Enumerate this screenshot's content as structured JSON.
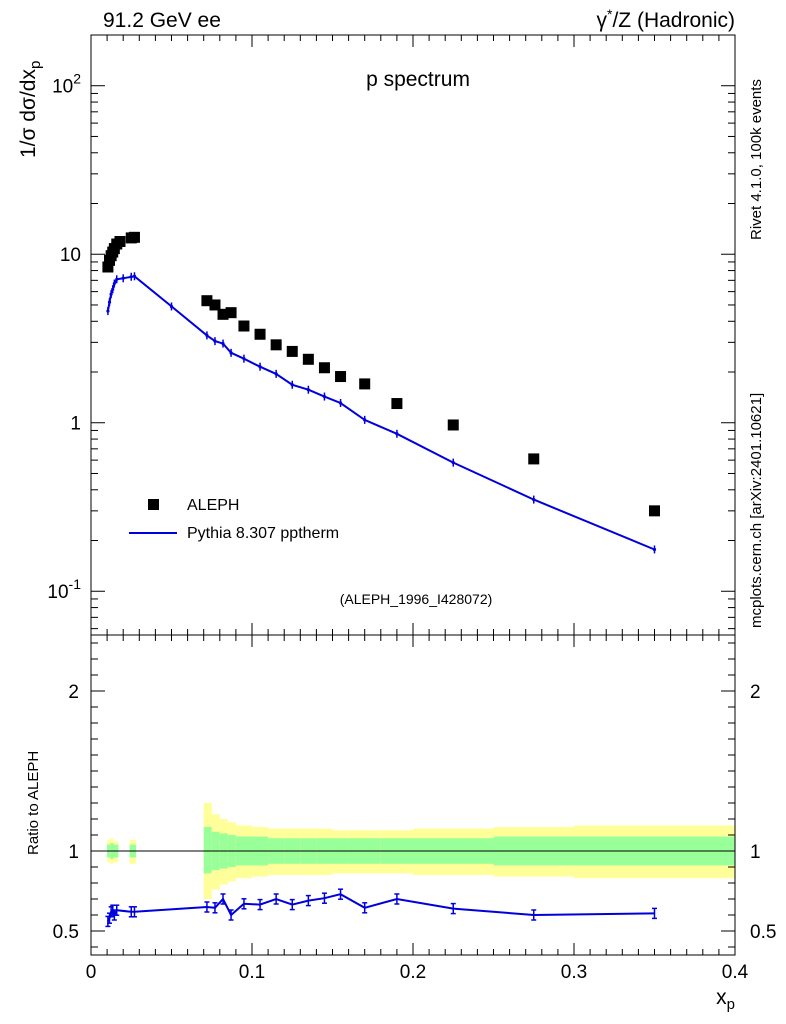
{
  "header": {
    "energy": "91.2 GeV ee",
    "process_prefix": "γ",
    "process_sup": "*",
    "process_suffix": "/Z (Hadronic)"
  },
  "side": {
    "rivet": "Rivet 4.1.0,  100k events",
    "mcplots": "mcplots.cern.ch [arXiv:2401.10621]"
  },
  "colors": {
    "mc": "#0000dd",
    "band_inner": "#99ff99",
    "band_outer": "#ffff99",
    "data": "#000000"
  },
  "chart_data": [
    {
      "type": "scatter",
      "title": "p spectrum",
      "analysis_id": "(ALEPH_1996_I428072)",
      "ylabel": "1/σ  dσ/dx_p",
      "yscale": "log",
      "xlim": [
        0,
        0.4
      ],
      "ylim": [
        0.055,
        200
      ],
      "ytick_labels": [
        "10^-1",
        "1",
        "10",
        "10^2"
      ],
      "legend": {
        "position": "bottom-left",
        "entries": [
          "ALEPH",
          "Pythia 8.307 pptherm"
        ]
      },
      "series": [
        {
          "name": "ALEPH",
          "style": "markers",
          "x": [
            0.0105,
            0.0115,
            0.0125,
            0.0135,
            0.0145,
            0.016,
            0.018,
            0.025,
            0.027,
            0.072,
            0.077,
            0.082,
            0.087,
            0.095,
            0.105,
            0.115,
            0.125,
            0.135,
            0.145,
            0.155,
            0.17,
            0.19,
            0.225,
            0.275,
            0.35
          ],
          "y": [
            8.4,
            9.2,
            9.8,
            10.3,
            10.8,
            11.5,
            11.9,
            12.5,
            12.6,
            5.3,
            5.0,
            4.4,
            4.5,
            3.75,
            3.35,
            2.9,
            2.65,
            2.38,
            2.12,
            1.88,
            1.7,
            1.3,
            0.97,
            0.61,
            0.3
          ]
        },
        {
          "name": "Pythia 8.307 pptherm",
          "style": "line",
          "x": [
            0.0105,
            0.0115,
            0.0125,
            0.0135,
            0.0145,
            0.016,
            0.02,
            0.025,
            0.027,
            0.05,
            0.072,
            0.077,
            0.082,
            0.087,
            0.095,
            0.105,
            0.115,
            0.125,
            0.135,
            0.145,
            0.155,
            0.17,
            0.19,
            0.225,
            0.275,
            0.35
          ],
          "y": [
            4.6,
            5.2,
            5.8,
            6.2,
            6.7,
            7.1,
            7.2,
            7.35,
            7.4,
            4.9,
            3.3,
            3.05,
            2.95,
            2.6,
            2.4,
            2.15,
            1.95,
            1.68,
            1.57,
            1.43,
            1.31,
            1.04,
            0.86,
            0.58,
            0.35,
            0.177
          ]
        }
      ]
    },
    {
      "type": "line",
      "ylabel": "Ratio to ALEPH",
      "xlabel": "x_p",
      "xlim": [
        0,
        0.4
      ],
      "ylim": [
        0.35,
        2.35
      ],
      "xtick_labels": [
        "0",
        "0.1",
        "0.2",
        "0.3",
        "0.4"
      ],
      "ytick_labels": [
        "0.5",
        "1",
        "2"
      ],
      "ratio_x": [
        0.0105,
        0.0115,
        0.0125,
        0.0135,
        0.0145,
        0.016,
        0.025,
        0.027,
        0.072,
        0.077,
        0.082,
        0.087,
        0.095,
        0.105,
        0.115,
        0.125,
        0.135,
        0.145,
        0.155,
        0.17,
        0.19,
        0.225,
        0.275,
        0.35
      ],
      "ratio_y": [
        0.56,
        0.58,
        0.62,
        0.63,
        0.6,
        0.63,
        0.62,
        0.62,
        0.65,
        0.645,
        0.7,
        0.6,
        0.67,
        0.665,
        0.7,
        0.665,
        0.69,
        0.705,
        0.73,
        0.645,
        0.7,
        0.64,
        0.6,
        0.61
      ],
      "bands": [
        {
          "x0": 0.01,
          "x1": 0.012,
          "inner": [
            0.96,
            1.04
          ],
          "outer": [
            0.93,
            1.07
          ]
        },
        {
          "x0": 0.012,
          "x1": 0.014,
          "inner": [
            0.95,
            1.05
          ],
          "outer": [
            0.92,
            1.08
          ]
        },
        {
          "x0": 0.014,
          "x1": 0.017,
          "inner": [
            0.96,
            1.04
          ],
          "outer": [
            0.93,
            1.06
          ]
        },
        {
          "x0": 0.024,
          "x1": 0.028,
          "inner": [
            0.96,
            1.04
          ],
          "outer": [
            0.92,
            1.07
          ]
        },
        {
          "x0": 0.07,
          "x1": 0.075,
          "inner": [
            0.86,
            1.15
          ],
          "outer": [
            0.7,
            1.3
          ]
        },
        {
          "x0": 0.075,
          "x1": 0.08,
          "inner": [
            0.88,
            1.12
          ],
          "outer": [
            0.76,
            1.23
          ]
        },
        {
          "x0": 0.08,
          "x1": 0.085,
          "inner": [
            0.89,
            1.11
          ],
          "outer": [
            0.79,
            1.2
          ]
        },
        {
          "x0": 0.085,
          "x1": 0.09,
          "inner": [
            0.9,
            1.1
          ],
          "outer": [
            0.81,
            1.18
          ]
        },
        {
          "x0": 0.09,
          "x1": 0.1,
          "inner": [
            0.91,
            1.09
          ],
          "outer": [
            0.83,
            1.16
          ]
        },
        {
          "x0": 0.1,
          "x1": 0.11,
          "inner": [
            0.91,
            1.09
          ],
          "outer": [
            0.84,
            1.15
          ]
        },
        {
          "x0": 0.11,
          "x1": 0.12,
          "inner": [
            0.92,
            1.08
          ],
          "outer": [
            0.85,
            1.14
          ]
        },
        {
          "x0": 0.12,
          "x1": 0.13,
          "inner": [
            0.92,
            1.08
          ],
          "outer": [
            0.85,
            1.14
          ]
        },
        {
          "x0": 0.13,
          "x1": 0.14,
          "inner": [
            0.92,
            1.08
          ],
          "outer": [
            0.85,
            1.14
          ]
        },
        {
          "x0": 0.14,
          "x1": 0.15,
          "inner": [
            0.92,
            1.08
          ],
          "outer": [
            0.85,
            1.14
          ]
        },
        {
          "x0": 0.15,
          "x1": 0.16,
          "inner": [
            0.92,
            1.08
          ],
          "outer": [
            0.86,
            1.13
          ]
        },
        {
          "x0": 0.16,
          "x1": 0.18,
          "inner": [
            0.92,
            1.08
          ],
          "outer": [
            0.86,
            1.13
          ]
        },
        {
          "x0": 0.18,
          "x1": 0.2,
          "inner": [
            0.92,
            1.08
          ],
          "outer": [
            0.86,
            1.13
          ]
        },
        {
          "x0": 0.2,
          "x1": 0.25,
          "inner": [
            0.92,
            1.08
          ],
          "outer": [
            0.85,
            1.14
          ]
        },
        {
          "x0": 0.25,
          "x1": 0.3,
          "inner": [
            0.91,
            1.09
          ],
          "outer": [
            0.84,
            1.15
          ]
        },
        {
          "x0": 0.3,
          "x1": 0.4,
          "inner": [
            0.91,
            1.09
          ],
          "outer": [
            0.83,
            1.16
          ]
        }
      ]
    }
  ]
}
